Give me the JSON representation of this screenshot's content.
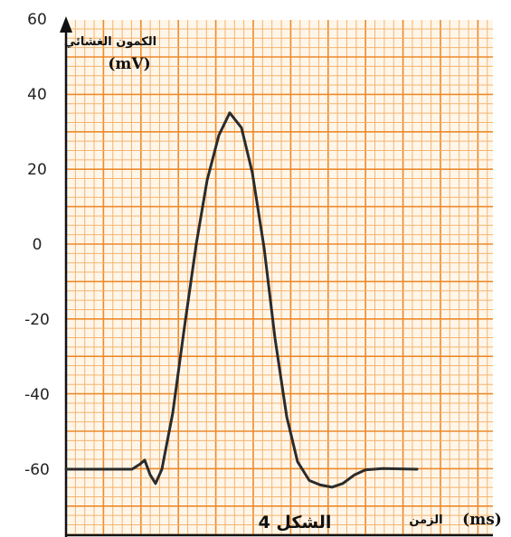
{
  "chart_data": {
    "type": "line",
    "y_title": "الكمون الغشائي",
    "y_unit": "(mV)",
    "x_title": "الزمن",
    "x_unit": "(ms)",
    "figure_label": "الشكل 4",
    "y_ticks": [
      "60",
      "40",
      "20",
      "0",
      "-20",
      "-40",
      "-60"
    ],
    "ylim": [
      -72,
      60
    ],
    "grid": true,
    "series": [
      {
        "values": [
          {
            "x": 0,
            "y": -60
          },
          {
            "x": 7.3,
            "y": -60
          },
          {
            "x": 8.2,
            "y": -58.6
          },
          {
            "x": 8.7,
            "y": -57.6
          },
          {
            "x": 9.3,
            "y": -61.5
          },
          {
            "x": 9.9,
            "y": -63.8
          },
          {
            "x": 10.6,
            "y": -60
          },
          {
            "x": 11.8,
            "y": -45
          },
          {
            "x": 13.1,
            "y": -22
          },
          {
            "x": 14.4,
            "y": 0
          },
          {
            "x": 15.6,
            "y": 17
          },
          {
            "x": 16.9,
            "y": 29
          },
          {
            "x": 18.1,
            "y": 35
          },
          {
            "x": 19.4,
            "y": 31
          },
          {
            "x": 20.6,
            "y": 19
          },
          {
            "x": 21.9,
            "y": -1
          },
          {
            "x": 23.1,
            "y": -25
          },
          {
            "x": 24.4,
            "y": -46
          },
          {
            "x": 25.6,
            "y": -58
          },
          {
            "x": 26.9,
            "y": -63
          },
          {
            "x": 28.1,
            "y": -64.2
          },
          {
            "x": 29.4,
            "y": -64.8
          },
          {
            "x": 30.6,
            "y": -63.8
          },
          {
            "x": 31.9,
            "y": -61.5
          },
          {
            "x": 33.1,
            "y": -60.2
          },
          {
            "x": 35.0,
            "y": -59.8
          },
          {
            "x": 38.8,
            "y": -60
          }
        ]
      }
    ]
  },
  "colors": {
    "grid_fine": "#f5b46e",
    "grid_major": "#ec8a2b",
    "background": "#fff6ea",
    "curve": "#2b2b2b",
    "axis": "#111111"
  }
}
